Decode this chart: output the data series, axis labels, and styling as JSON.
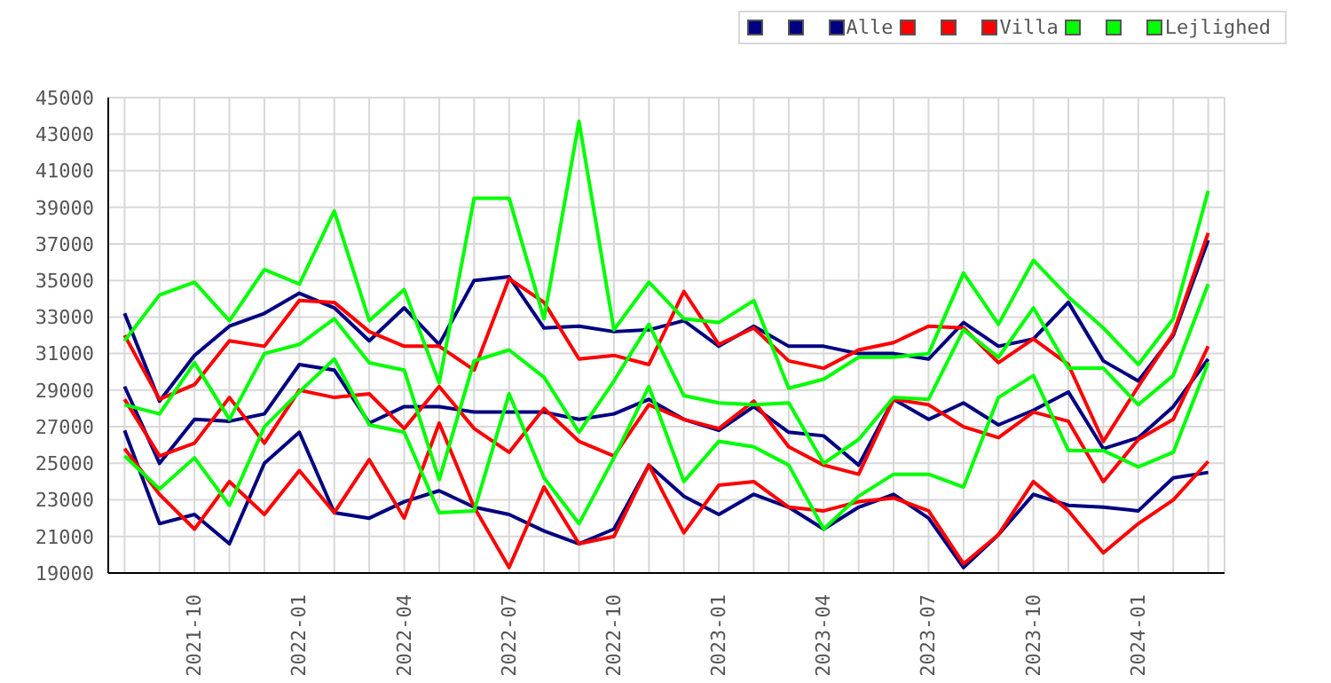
{
  "chart_data": {
    "type": "line",
    "x": [
      "2021-08",
      "2021-09",
      "2021-10",
      "2021-11",
      "2021-12",
      "2022-01",
      "2022-02",
      "2022-03",
      "2022-04",
      "2022-05",
      "2022-06",
      "2022-07",
      "2022-08",
      "2022-09",
      "2022-10",
      "2022-11",
      "2022-12",
      "2023-01",
      "2023-02",
      "2023-03",
      "2023-04",
      "2023-05",
      "2023-06",
      "2023-07",
      "2023-08",
      "2023-09",
      "2023-10",
      "2023-11",
      "2023-12",
      "2024-01",
      "2024-02",
      "2024-03"
    ],
    "series": [
      {
        "color": "#000080",
        "values": [
          33200,
          28400,
          30900,
          32500,
          33200,
          34300,
          33500,
          31700,
          33500,
          31500,
          35000,
          35200,
          32400,
          32500,
          32200,
          32300,
          32800,
          31400,
          32500,
          31400,
          31400,
          31000,
          31000,
          30700,
          32700,
          31400,
          31800,
          33800,
          30600,
          29500,
          32000,
          37200
        ]
      },
      {
        "color": "#000080",
        "values": [
          29200,
          25000,
          27400,
          27300,
          27700,
          30400,
          30100,
          27200,
          28100,
          28100,
          27800,
          27800,
          27800,
          27400,
          27700,
          28500,
          27400,
          26800,
          28100,
          26700,
          26500,
          24900,
          28500,
          27400,
          28300,
          27100,
          27900,
          28900,
          25800,
          26400,
          28100,
          30700
        ]
      },
      {
        "name": "Alle",
        "color": "#000080",
        "values": [
          26800,
          21700,
          22200,
          20600,
          25000,
          26700,
          22300,
          22000,
          22900,
          23500,
          22600,
          22200,
          21300,
          20600,
          21400,
          24900,
          23200,
          22200,
          23300,
          22600,
          21400,
          22600,
          23300,
          22000,
          19300,
          21100,
          23300,
          22700,
          22600,
          22400,
          24200,
          24500
        ]
      },
      {
        "color": "#ff0000",
        "values": [
          32000,
          28500,
          29300,
          31700,
          31400,
          33900,
          33800,
          32200,
          31400,
          31400,
          30100,
          35100,
          33800,
          30700,
          30900,
          30400,
          34400,
          31500,
          32400,
          30600,
          30200,
          31200,
          31600,
          32500,
          32400,
          30500,
          31800,
          30400,
          26200,
          29200,
          32100,
          37600
        ]
      },
      {
        "color": "#ff0000",
        "values": [
          28500,
          25400,
          26100,
          28600,
          26100,
          29000,
          28600,
          28800,
          26900,
          29200,
          26900,
          25600,
          28000,
          26200,
          25400,
          28200,
          27400,
          26900,
          28400,
          25900,
          24900,
          24400,
          28500,
          28200,
          27000,
          26400,
          27800,
          27300,
          24000,
          26300,
          27400,
          31400
        ]
      },
      {
        "name": "Villa",
        "color": "#ff0000",
        "values": [
          25800,
          23300,
          21400,
          24000,
          22200,
          24600,
          22300,
          25200,
          22000,
          27200,
          22600,
          19300,
          23700,
          20600,
          21000,
          24900,
          21200,
          23800,
          24000,
          22600,
          22400,
          22900,
          23100,
          22400,
          19500,
          21100,
          24000,
          22400,
          20100,
          21700,
          23000,
          25100
        ]
      },
      {
        "color": "#00ff00",
        "values": [
          31700,
          34200,
          34900,
          32800,
          35600,
          34800,
          38800,
          32800,
          34500,
          29400,
          39500,
          39500,
          32900,
          43700,
          32300,
          34900,
          32900,
          32700,
          33900,
          29100,
          29600,
          30800,
          30800,
          31000,
          35400,
          32600,
          36100,
          34100,
          32400,
          30400,
          32900,
          39900
        ]
      },
      {
        "color": "#00ff00",
        "values": [
          28200,
          27700,
          30500,
          27400,
          31000,
          31500,
          32900,
          30500,
          30100,
          24100,
          30600,
          31200,
          29700,
          26700,
          29500,
          32600,
          28700,
          28300,
          28200,
          28300,
          25000,
          26300,
          28600,
          28500,
          32300,
          30800,
          33500,
          30200,
          30200,
          28200,
          29800,
          34800
        ]
      },
      {
        "name": "Lejlighed",
        "color": "#00ff00",
        "values": [
          25400,
          23600,
          25300,
          22700,
          27000,
          28900,
          30700,
          27100,
          26700,
          22300,
          22400,
          28800,
          24200,
          21700,
          25300,
          29200,
          24000,
          26200,
          25900,
          24900,
          21400,
          23200,
          24400,
          24400,
          23700,
          28600,
          29800,
          25700,
          25700,
          24800,
          25600,
          30500
        ]
      }
    ],
    "xlim": [
      "2021-07-17",
      "2024-03-15"
    ],
    "xticks": [
      {
        "value": "2021-08",
        "label": null
      },
      {
        "value": "2021-09",
        "label": null
      },
      "2021-10",
      {
        "value": "2021-11",
        "label": null
      },
      {
        "value": "2021-12",
        "label": null
      },
      "2022-01",
      {
        "value": "2022-02",
        "label": null
      },
      {
        "value": "2022-03",
        "label": null
      },
      "2022-04",
      {
        "value": "2022-05",
        "label": null
      },
      {
        "value": "2022-06",
        "label": null
      },
      "2022-07",
      {
        "value": "2022-08",
        "label": null
      },
      {
        "value": "2022-09",
        "label": null
      },
      "2022-10",
      {
        "value": "2022-11",
        "label": null
      },
      {
        "value": "2022-12",
        "label": null
      },
      "2023-01",
      {
        "value": "2023-02",
        "label": null
      },
      {
        "value": "2023-03",
        "label": null
      },
      "2023-04",
      {
        "value": "2023-05",
        "label": null
      },
      {
        "value": "2023-06",
        "label": null
      },
      "2023-07",
      {
        "value": "2023-08",
        "label": null
      },
      {
        "value": "2023-09",
        "label": null
      },
      "2023-10",
      {
        "value": "2023-11",
        "label": null
      },
      {
        "value": "2023-12",
        "label": null
      },
      "2024-01",
      {
        "value": "2024-02",
        "label": null
      },
      {
        "value": "2024-03",
        "label": null
      }
    ],
    "ylim": [
      19000,
      45000
    ],
    "yticks": [
      19000,
      21000,
      23000,
      25000,
      27000,
      29000,
      31000,
      33000,
      35000,
      37000,
      39000,
      41000,
      43000,
      45000
    ],
    "grid": true,
    "legend": "top right"
  }
}
